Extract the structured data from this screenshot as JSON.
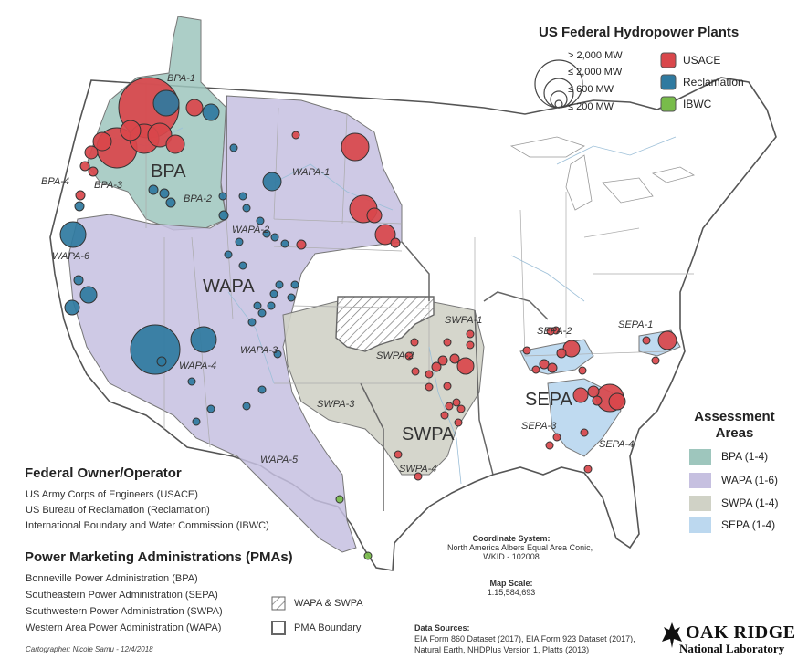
{
  "map": {
    "title": "US Federal Hydropower Plants",
    "size_legend": {
      "labels": [
        "> 2,000 MW",
        "≤ 2,000 MW",
        "≤ 600 MW",
        "≤ 200 MW"
      ]
    },
    "owner_colors": {
      "usace": "#d9474b",
      "reclamation": "#2f7aa0",
      "ibwc": "#78bc4a"
    },
    "owner_legend": {
      "usace": "USACE",
      "reclamation": "Reclamation",
      "ibwc": "IBWC"
    },
    "region_labels": {
      "bpa": "BPA",
      "wapa": "WAPA",
      "swpa": "SWPA",
      "sepa": "SEPA"
    },
    "subregion_labels": [
      "BPA-1",
      "BPA-2",
      "BPA-3",
      "BPA-4",
      "WAPA-1",
      "WAPA-2",
      "WAPA-3",
      "WAPA-4",
      "WAPA-5",
      "WAPA-6",
      "SWPA-1",
      "SWPA-2",
      "SWPA-3",
      "SWPA-4",
      "SEPA-1",
      "SEPA-2",
      "SEPA-3",
      "SEPA-4"
    ],
    "assessment_areas": {
      "title": "Assessment Areas",
      "title_line1": "Assessment",
      "title_line2": "Areas",
      "items": [
        {
          "label": "BPA (1-4)",
          "color": "#9ec6bd"
        },
        {
          "label": "WAPA (1-6)",
          "color": "#c6c0e0"
        },
        {
          "label": "SWPA (1-4)",
          "color": "#d0d2c6"
        },
        {
          "label": "SEPA (1-4)",
          "color": "#bcd8ef"
        }
      ]
    },
    "federal_owner": {
      "title": "Federal Owner/Operator",
      "items": [
        "US Army Corps of Engineers (USACE)",
        "US Bureau of Reclamation (Reclamation)",
        "International Boundary and Water Commission (IBWC)"
      ]
    },
    "pmas": {
      "title": "Power Marketing Administrations (PMAs)",
      "items": [
        "Bonneville Power Administration (BPA)",
        "Southeastern Power Administration (SEPA)",
        "Southwestern Power Administration (SWPA)",
        "Western Area Power Administration (WAPA)"
      ]
    },
    "boundary_legend": {
      "overlap": "WAPA & SWPA",
      "boundary": "PMA Boundary"
    },
    "coordinate_system": {
      "title": "Coordinate System:",
      "line1": "North America Albers Equal Area Conic,",
      "line2": "WKID - 102008"
    },
    "map_scale": {
      "title": "Map Scale:",
      "value": "1:15,584,693"
    },
    "data_sources": {
      "title": "Data Sources:",
      "line1": "EIA Form 860 Dataset (2017), EIA Form 923 Dataset (2017),",
      "line2": "Natural Earth, NHDPlus Version 1, Platts (2013)"
    },
    "cartographer": "Cartographer: Nicole Samu - 12/4/2018",
    "logo": {
      "line1": "OAK RIDGE",
      "line2": "National Laboratory"
    }
  }
}
